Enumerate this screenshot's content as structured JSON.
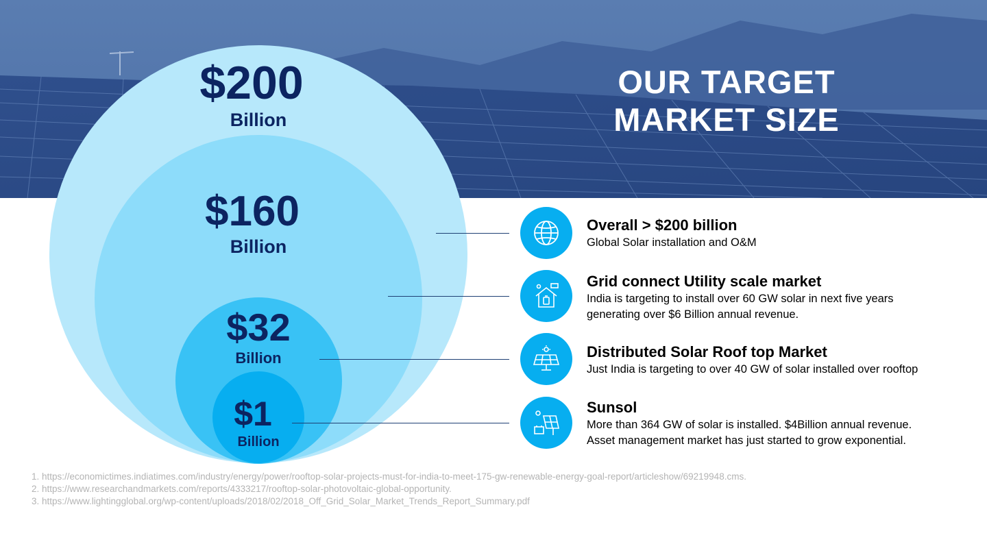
{
  "title": {
    "line1": "OUR TARGET",
    "line2": "MARKET SIZE"
  },
  "circles": [
    {
      "amount": "$200",
      "unit": "Billion",
      "color": "#b7e8fb"
    },
    {
      "amount": "$160",
      "unit": "Billion",
      "color": "#8ddcfa"
    },
    {
      "amount": "$32",
      "unit": "Billion",
      "color": "#39c2f5"
    },
    {
      "amount": "$1",
      "unit": "Billion",
      "color": "#07aef0"
    }
  ],
  "items": [
    {
      "icon": "globe-icon",
      "title": "Overall > $200 billion",
      "desc": [
        "Global Solar installation and O&M"
      ]
    },
    {
      "icon": "solar-house-icon",
      "title": "Grid connect Utility scale market",
      "desc": [
        "India is targeting to install over 60 GW solar in next five years",
        "generating over $6 Billion annual revenue."
      ]
    },
    {
      "icon": "solar-panel-icon",
      "title": "Distributed Solar Roof top Market",
      "desc": [
        "Just India is targeting to over 40 GW of solar installed over rooftop"
      ]
    },
    {
      "icon": "solar-battery-icon",
      "title": "Sunsol",
      "desc": [
        "More than 364 GW of solar is installed. $4Billion annual revenue.",
        "Asset management market has just started to grow exponential."
      ]
    }
  ],
  "footnotes": [
    "1. https://economictimes.indiatimes.com/industry/energy/power/rooftop-solar-projects-must-for-india-to-meet-175-gw-renewable-energy-goal-report/articleshow/69219948.cms.",
    "2. https://www.researchandmarkets.com/reports/4333217/rooftop-solar-photovoltaic-global-opportunity.",
    "3. https://www.lightingglobal.org/wp-content/uploads/2018/02/2018_Off_Grid_Solar_Market_Trends_Report_Summary.pdf"
  ],
  "colors": {
    "accent": "#07aef0",
    "navy": "#0c2461",
    "hero": "#3f639c"
  }
}
